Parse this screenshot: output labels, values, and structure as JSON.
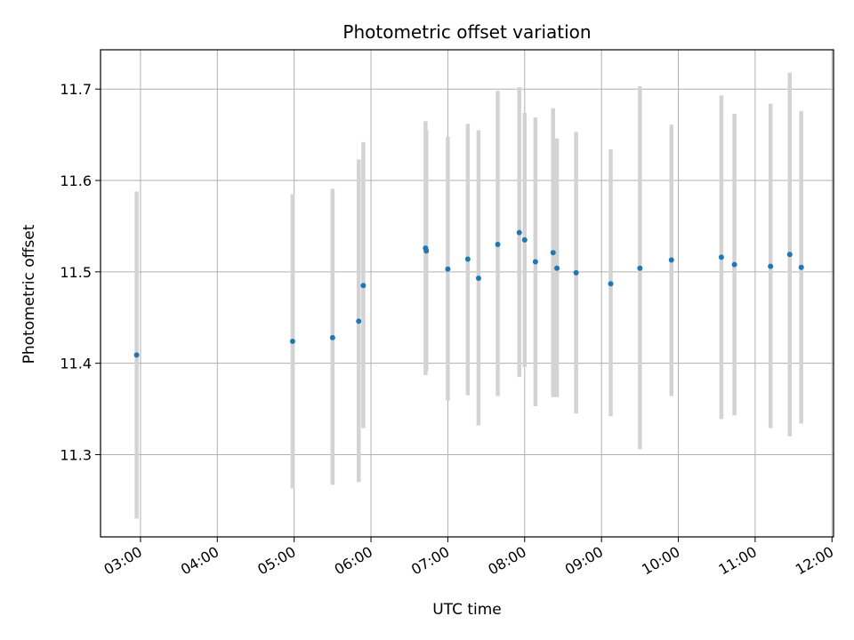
{
  "chart_data": {
    "type": "scatter",
    "title": "Photometric offset variation",
    "xlabel": "UTC time",
    "ylabel": "Photometric offset",
    "x_unit": "hours (UTC)",
    "xlim": [
      2.48,
      12.02
    ],
    "ylim": [
      11.21,
      11.743
    ],
    "grid": true,
    "legend": "none",
    "x_ticks": [
      {
        "value": 3,
        "label": "03:00"
      },
      {
        "value": 4,
        "label": "04:00"
      },
      {
        "value": 5,
        "label": "05:00"
      },
      {
        "value": 6,
        "label": "06:00"
      },
      {
        "value": 7,
        "label": "07:00"
      },
      {
        "value": 8,
        "label": "08:00"
      },
      {
        "value": 9,
        "label": "09:00"
      },
      {
        "value": 10,
        "label": "10:00"
      },
      {
        "value": 11,
        "label": "11:00"
      },
      {
        "value": 12,
        "label": "12:00"
      }
    ],
    "y_ticks": [
      {
        "value": 11.3,
        "label": "11.3"
      },
      {
        "value": 11.4,
        "label": "11.4"
      },
      {
        "value": 11.5,
        "label": "11.5"
      },
      {
        "value": 11.6,
        "label": "11.6"
      },
      {
        "value": 11.7,
        "label": "11.7"
      }
    ],
    "point_color": "#1f77b4",
    "errorbar_color": "#d3d3d3",
    "points": [
      {
        "x": 2.95,
        "y": 11.409,
        "ylow": 11.23,
        "yhigh": 11.588
      },
      {
        "x": 4.98,
        "y": 11.424,
        "ylow": 11.263,
        "yhigh": 11.585
      },
      {
        "x": 5.5,
        "y": 11.428,
        "ylow": 11.267,
        "yhigh": 11.591
      },
      {
        "x": 5.84,
        "y": 11.446,
        "ylow": 11.27,
        "yhigh": 11.623
      },
      {
        "x": 5.9,
        "y": 11.485,
        "ylow": 11.329,
        "yhigh": 11.642
      },
      {
        "x": 6.71,
        "y": 11.526,
        "ylow": 11.387,
        "yhigh": 11.665
      },
      {
        "x": 6.72,
        "y": 11.523,
        "ylow": 11.392,
        "yhigh": 11.655
      },
      {
        "x": 7.0,
        "y": 11.503,
        "ylow": 11.359,
        "yhigh": 11.648
      },
      {
        "x": 7.26,
        "y": 11.514,
        "ylow": 11.365,
        "yhigh": 11.662
      },
      {
        "x": 7.4,
        "y": 11.493,
        "ylow": 11.332,
        "yhigh": 11.655
      },
      {
        "x": 7.65,
        "y": 11.53,
        "ylow": 11.364,
        "yhigh": 11.698
      },
      {
        "x": 7.93,
        "y": 11.543,
        "ylow": 11.385,
        "yhigh": 11.702
      },
      {
        "x": 8.0,
        "y": 11.535,
        "ylow": 11.396,
        "yhigh": 11.674
      },
      {
        "x": 8.14,
        "y": 11.511,
        "ylow": 11.353,
        "yhigh": 11.669
      },
      {
        "x": 8.37,
        "y": 11.521,
        "ylow": 11.363,
        "yhigh": 11.679
      },
      {
        "x": 8.42,
        "y": 11.504,
        "ylow": 11.363,
        "yhigh": 11.646
      },
      {
        "x": 8.67,
        "y": 11.499,
        "ylow": 11.345,
        "yhigh": 11.653
      },
      {
        "x": 9.12,
        "y": 11.487,
        "ylow": 11.342,
        "yhigh": 11.634
      },
      {
        "x": 9.5,
        "y": 11.504,
        "ylow": 11.306,
        "yhigh": 11.703
      },
      {
        "x": 9.91,
        "y": 11.513,
        "ylow": 11.364,
        "yhigh": 11.661
      },
      {
        "x": 10.56,
        "y": 11.516,
        "ylow": 11.339,
        "yhigh": 11.693
      },
      {
        "x": 10.73,
        "y": 11.508,
        "ylow": 11.343,
        "yhigh": 11.673
      },
      {
        "x": 11.2,
        "y": 11.506,
        "ylow": 11.329,
        "yhigh": 11.684
      },
      {
        "x": 11.45,
        "y": 11.519,
        "ylow": 11.32,
        "yhigh": 11.718
      },
      {
        "x": 11.6,
        "y": 11.505,
        "ylow": 11.334,
        "yhigh": 11.676
      }
    ]
  }
}
